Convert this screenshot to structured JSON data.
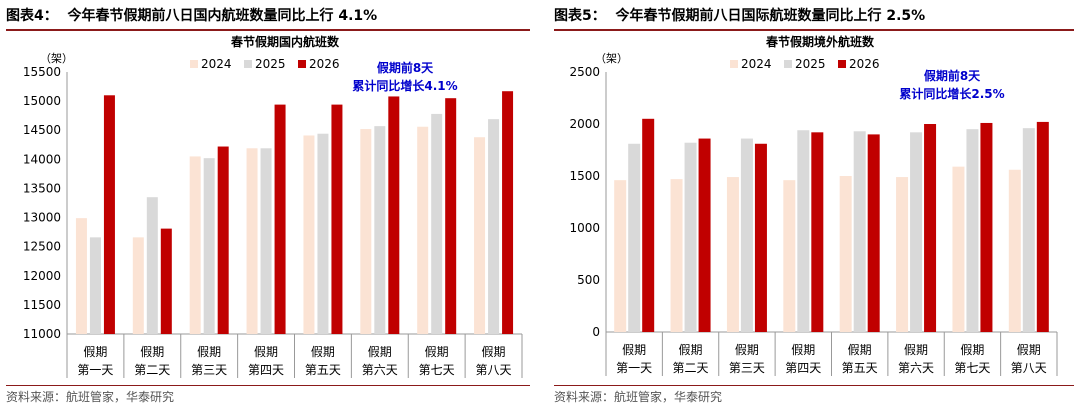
{
  "colors": {
    "y2024": "#fbe3d4",
    "y2025": "#d9d9d9",
    "y2026": "#c00000",
    "title_rule": "#8b1a1a",
    "annotation": "#0000cc"
  },
  "charts": {
    "left": {
      "figure_title": "图表4：  今年春节假期前八日国内航班数量同比上行 4.1%",
      "source": "资料来源：航班管家，华泰研究"
    },
    "right": {
      "figure_title": "图表5：  今年春节假期前八日国际航班数量同比上行 2.5%",
      "source": "资料来源：航班管家，华泰研究"
    }
  },
  "chart_data": [
    {
      "type": "bar",
      "title": "春节假期国内航班数",
      "unit": "（架）",
      "categories": [
        "假期第一天",
        "假期第二天",
        "假期第三天",
        "假期第四天",
        "假期第五天",
        "假期第六天",
        "假期第七天",
        "假期第八天"
      ],
      "series": [
        {
          "name": "2024",
          "values": [
            12990,
            12660,
            14050,
            14190,
            14410,
            14520,
            14560,
            14380
          ]
        },
        {
          "name": "2025",
          "values": [
            12660,
            13350,
            14020,
            14190,
            14440,
            14570,
            14780,
            14690
          ]
        },
        {
          "name": "2026",
          "values": [
            15100,
            12810,
            14220,
            14940,
            14940,
            15080,
            15050,
            15170
          ]
        }
      ],
      "ylim": [
        11000,
        15500
      ],
      "yticks": [
        11000,
        11500,
        12000,
        12500,
        13000,
        13500,
        14000,
        14500,
        15000,
        15500
      ],
      "annotation": [
        "假期前8天",
        "累计同比增长4.1%"
      ],
      "legend": "top"
    },
    {
      "type": "bar",
      "title": "春节假期境外航班数",
      "unit": "（架）",
      "categories": [
        "假期第一天",
        "假期第二天",
        "假期第三天",
        "假期第四天",
        "假期第五天",
        "假期第六天",
        "假期第七天",
        "假期第八天"
      ],
      "series": [
        {
          "name": "2024",
          "values": [
            1460,
            1470,
            1490,
            1460,
            1500,
            1490,
            1590,
            1560
          ]
        },
        {
          "name": "2025",
          "values": [
            1810,
            1820,
            1860,
            1940,
            1930,
            1920,
            1950,
            1960
          ]
        },
        {
          "name": "2026",
          "values": [
            2050,
            1860,
            1810,
            1920,
            1900,
            2000,
            2010,
            2020
          ]
        }
      ],
      "ylim": [
        0,
        2500
      ],
      "yticks": [
        0,
        500,
        1000,
        1500,
        2000,
        2500
      ],
      "annotation": [
        "假期前8天",
        "累计同比增长2.5%"
      ],
      "legend": "top"
    }
  ]
}
